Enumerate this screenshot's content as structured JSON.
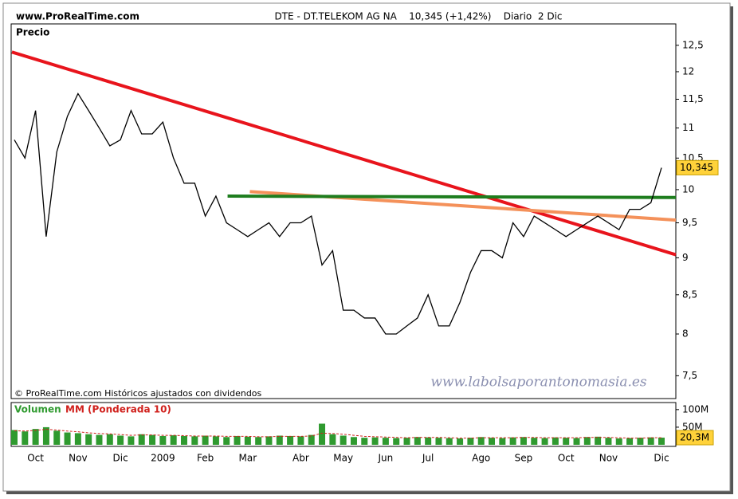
{
  "chart_data": [
    {
      "type": "line",
      "source": "www.ProRealTime.com",
      "title": "DTE - DT.TELEKOM AG NA    10,345 (+1,42%)    Diario  2 Dic",
      "ylabel": "Precio",
      "note": "© ProRealTime.com Históricos ajustados con dividendos",
      "watermark": "www.labolsaporantonomasia.es",
      "log": true,
      "ylim": [
        7.24,
        12.92
      ],
      "yticks": [
        {
          "value": 7.5,
          "label": "7,5"
        },
        {
          "value": 8,
          "label": "8"
        },
        {
          "value": 8.5,
          "label": "8,5"
        },
        {
          "value": 9,
          "label": "9"
        },
        {
          "value": 9.5,
          "label": "9,5"
        },
        {
          "value": 10,
          "label": "10"
        },
        {
          "value": 10.5,
          "label": "10,5"
        },
        {
          "value": 11,
          "label": "11"
        },
        {
          "value": 11.5,
          "label": "11,5"
        },
        {
          "value": 12,
          "label": "12"
        },
        {
          "value": 12.5,
          "label": "12,5"
        }
      ],
      "categories": [
        null,
        null,
        "Oct",
        null,
        null,
        null,
        "Nov",
        null,
        null,
        null,
        "Dic",
        null,
        null,
        null,
        "2009",
        null,
        null,
        null,
        "Feb",
        null,
        null,
        null,
        "Mar",
        null,
        null,
        null,
        null,
        "Abr",
        null,
        null,
        null,
        "May",
        null,
        null,
        null,
        "Jun",
        null,
        null,
        null,
        "Jul",
        null,
        null,
        null,
        null,
        "Ago",
        null,
        null,
        null,
        "Sep",
        null,
        null,
        null,
        "Oct",
        null,
        null,
        null,
        "Nov",
        null,
        null,
        null,
        null,
        "Dic"
      ],
      "color": "#000000",
      "values": [
        10.8,
        10.5,
        11.3,
        9.3,
        10.6,
        11.2,
        11.6,
        11.3,
        11.0,
        10.7,
        10.8,
        11.3,
        10.9,
        10.9,
        11.1,
        10.5,
        10.1,
        10.1,
        9.6,
        9.9,
        9.5,
        9.4,
        9.3,
        9.4,
        9.5,
        9.3,
        9.5,
        9.5,
        9.6,
        8.9,
        9.1,
        8.3,
        8.3,
        8.2,
        8.2,
        8.0,
        8.0,
        8.1,
        8.2,
        8.5,
        8.1,
        8.1,
        8.4,
        8.8,
        9.1,
        9.1,
        9.0,
        9.5,
        9.3,
        9.6,
        9.5,
        9.4,
        9.3,
        9.4,
        9.5,
        9.6,
        9.5,
        9.4,
        9.7,
        9.7,
        9.8,
        10.345
      ],
      "last": {
        "value": 10.345,
        "label": "10,345"
      },
      "lines": [
        {
          "color": "#e8141c",
          "x": [
            -0.23,
            62.4
          ],
          "y": [
            12.37,
            9.04
          ]
        },
        {
          "color": "#f4915a",
          "x": [
            22.2,
            62.4
          ],
          "y": [
            9.97,
            9.54
          ]
        },
        {
          "color": "#1e7d1e",
          "x": [
            20.1,
            62.4
          ],
          "y": [
            9.9,
            9.88
          ]
        }
      ]
    },
    {
      "type": "bar",
      "ylim": [
        0,
        120
      ],
      "yticks": [
        {
          "value": 50,
          "label": "50M"
        },
        {
          "value": 100,
          "label": "100M"
        }
      ],
      "series": [
        {
          "name": "Volumen",
          "color": "#2f9a2f",
          "values": [
            42,
            38,
            45,
            50,
            40,
            35,
            33,
            30,
            28,
            30,
            26,
            24,
            30,
            28,
            25,
            27,
            25,
            24,
            26,
            24,
            22,
            25,
            23,
            22,
            24,
            26,
            25,
            24,
            28,
            60,
            30,
            26,
            22,
            20,
            21,
            20,
            19,
            20,
            22,
            21,
            20,
            19,
            18,
            20,
            22,
            20,
            19,
            21,
            22,
            20,
            19,
            21,
            20,
            19,
            22,
            23,
            20,
            18,
            19,
            20,
            21,
            20.3
          ]
        },
        {
          "name": "MM (Ponderada 10)",
          "color": "#d0201c",
          "values": [
            40,
            39,
            41,
            44,
            42,
            39,
            37,
            34,
            32,
            31,
            29,
            27,
            28,
            28,
            27,
            27,
            26,
            25,
            25,
            25,
            24,
            24,
            24,
            23,
            23,
            24,
            24,
            24,
            25,
            33,
            32,
            30,
            27,
            24,
            23,
            22,
            21,
            20,
            21,
            21,
            21,
            20,
            19,
            19,
            20,
            20,
            20,
            20,
            21,
            21,
            20,
            20,
            20,
            20,
            21,
            21,
            21,
            20,
            19,
            19,
            20,
            20
          ]
        }
      ],
      "last": {
        "value": 20.3,
        "label": "20,3M"
      }
    }
  ]
}
